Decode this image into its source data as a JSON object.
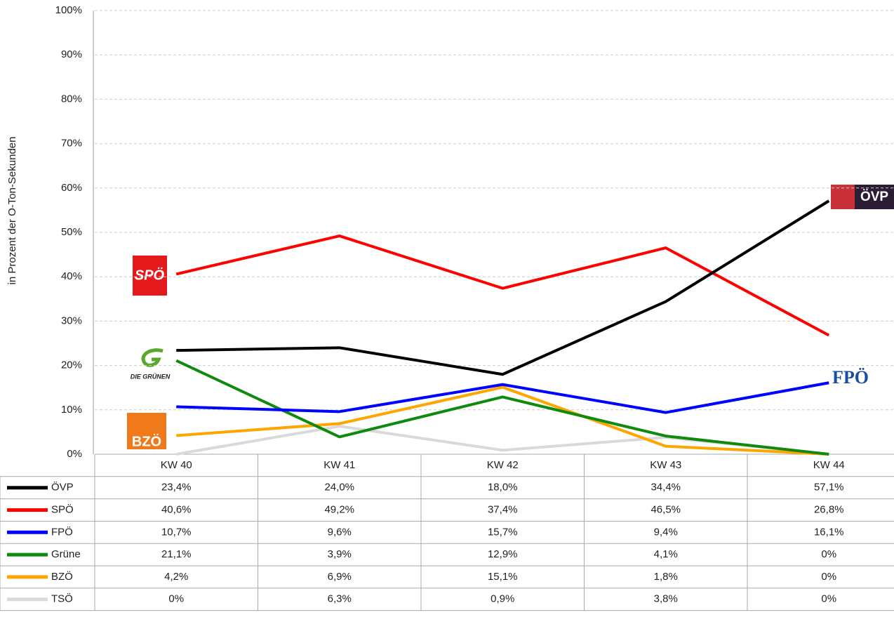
{
  "chart_data": {
    "type": "line",
    "y_label": "in Prozent der O-Ton-Sekunden",
    "categories": [
      "KW 40",
      "KW 41",
      "KW 42",
      "KW 43",
      "KW 44"
    ],
    "ylim": [
      0,
      100
    ],
    "yticks": [
      {
        "value": 0,
        "label": "0%"
      },
      {
        "value": 10,
        "label": "10%"
      },
      {
        "value": 20,
        "label": "20%"
      },
      {
        "value": 30,
        "label": "30%"
      },
      {
        "value": 40,
        "label": "40%"
      },
      {
        "value": 50,
        "label": "50%"
      },
      {
        "value": 60,
        "label": "60%"
      },
      {
        "value": 70,
        "label": "70%"
      },
      {
        "value": 80,
        "label": "80%"
      },
      {
        "value": 90,
        "label": "90%"
      },
      {
        "value": 100,
        "label": "100%"
      }
    ],
    "grid": true,
    "series": [
      {
        "name": "ÖVP",
        "color": "#000000",
        "values": [
          23.4,
          24.0,
          18.0,
          34.4,
          57.1
        ],
        "value_labels": [
          "23,4%",
          "24,0%",
          "18,0%",
          "34,4%",
          "57,1%"
        ]
      },
      {
        "name": "SPÖ",
        "color": "#ff0000",
        "values": [
          40.6,
          49.2,
          37.4,
          46.5,
          26.8
        ],
        "value_labels": [
          "40,6%",
          "49,2%",
          "37,4%",
          "46,5%",
          "26,8%"
        ]
      },
      {
        "name": "FPÖ",
        "color": "#0000ff",
        "values": [
          10.7,
          9.6,
          15.7,
          9.4,
          16.1
        ],
        "value_labels": [
          "10,7%",
          "9,6%",
          "15,7%",
          "9,4%",
          "16,1%"
        ]
      },
      {
        "name": "Grüne",
        "color": "#0f8a0f",
        "values": [
          21.1,
          3.9,
          12.9,
          4.1,
          0
        ],
        "value_labels": [
          "21,1%",
          "3,9%",
          "12,9%",
          "4,1%",
          "0%"
        ]
      },
      {
        "name": "BZÖ",
        "color": "#ffa500",
        "values": [
          4.2,
          6.9,
          15.1,
          1.8,
          0
        ],
        "value_labels": [
          "4,2%",
          "6,9%",
          "15,1%",
          "1,8%",
          "0%"
        ]
      },
      {
        "name": "TSÖ",
        "color": "#d9d9d9",
        "values": [
          0,
          6.3,
          0.9,
          3.8,
          0
        ],
        "value_labels": [
          "0%",
          "6,3%",
          "0,9%",
          "3,8%",
          "0%"
        ]
      }
    ],
    "annotations": [
      "SPÖ",
      "ÖVP",
      "FPÖ",
      "DIE GRÜNEN",
      "BZÖ"
    ]
  }
}
